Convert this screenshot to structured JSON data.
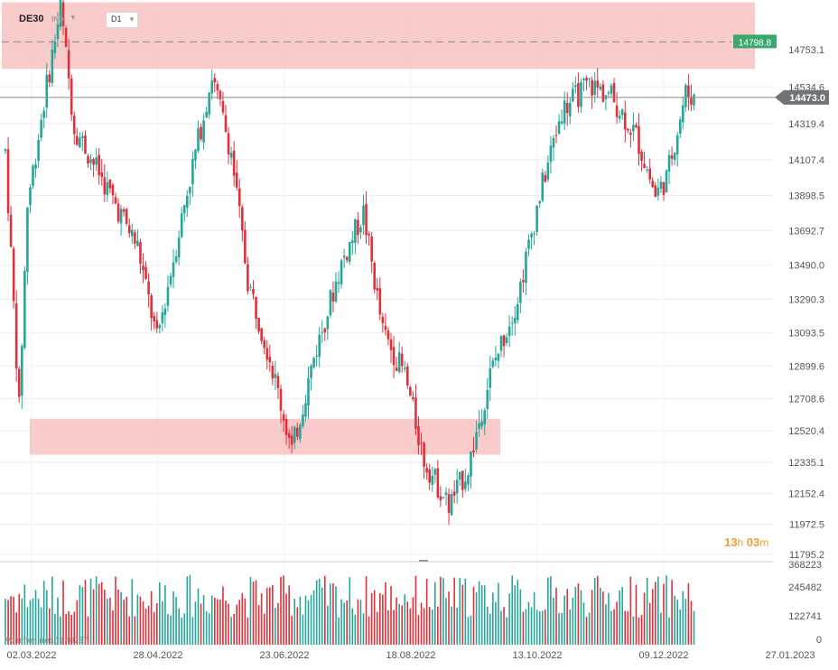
{
  "header": {
    "symbol": "DE30",
    "exchange": "IND",
    "timeframe": "D1"
  },
  "countdown": {
    "hours": "13",
    "hours_unit": "h",
    "minutes": "03",
    "minutes_unit": "m"
  },
  "volume_legend": "Volumen (real) | 40237",
  "colors": {
    "up": "#26a69a",
    "down": "#e0303a",
    "zone": "#f9c2c2",
    "last_price_bg": "#6f7478",
    "level_bg": "#3aa86b"
  },
  "chart_data": {
    "type": "candlestick",
    "price_axis": {
      "ticks": [
        14753.1,
        14534.6,
        14319.4,
        14107.4,
        13898.5,
        13692.7,
        13490.0,
        13290.3,
        13093.5,
        12899.6,
        12708.6,
        12520.4,
        12335.1,
        12152.4,
        11972.5,
        11795.2
      ]
    },
    "volume_axis": {
      "ticks": [
        368223,
        245482,
        122741,
        0
      ]
    },
    "time_axis": {
      "labels": [
        "02.03.2022",
        "28.04.2022",
        "23.06.2022",
        "18.08.2022",
        "13.10.2022",
        "09.12.2022",
        "27.01.2023"
      ]
    },
    "last_price": 14473.0,
    "horizontal_level": 14798.8,
    "zones": [
      {
        "from": 14640,
        "to": 15030
      },
      {
        "from": 12380,
        "to": 12590
      }
    ],
    "anchors": [
      [
        0,
        14160
      ],
      [
        5,
        12650
      ],
      [
        8,
        13850
      ],
      [
        14,
        14450
      ],
      [
        20,
        15000
      ],
      [
        25,
        14300
      ],
      [
        35,
        14000
      ],
      [
        48,
        13600
      ],
      [
        55,
        13050
      ],
      [
        65,
        13850
      ],
      [
        75,
        14600
      ],
      [
        82,
        14150
      ],
      [
        88,
        13400
      ],
      [
        96,
        12950
      ],
      [
        104,
        12400
      ],
      [
        112,
        12950
      ],
      [
        122,
        13500
      ],
      [
        130,
        13800
      ],
      [
        137,
        13100
      ],
      [
        145,
        12850
      ],
      [
        152,
        12350
      ],
      [
        161,
        12080
      ],
      [
        168,
        12300
      ],
      [
        176,
        12850
      ],
      [
        186,
        13300
      ],
      [
        194,
        13900
      ],
      [
        202,
        14400
      ],
      [
        212,
        14550
      ],
      [
        220,
        14480
      ],
      [
        229,
        14250
      ],
      [
        236,
        13900
      ],
      [
        240,
        14000
      ],
      [
        247,
        14500
      ],
      [
        250,
        14473
      ]
    ]
  }
}
